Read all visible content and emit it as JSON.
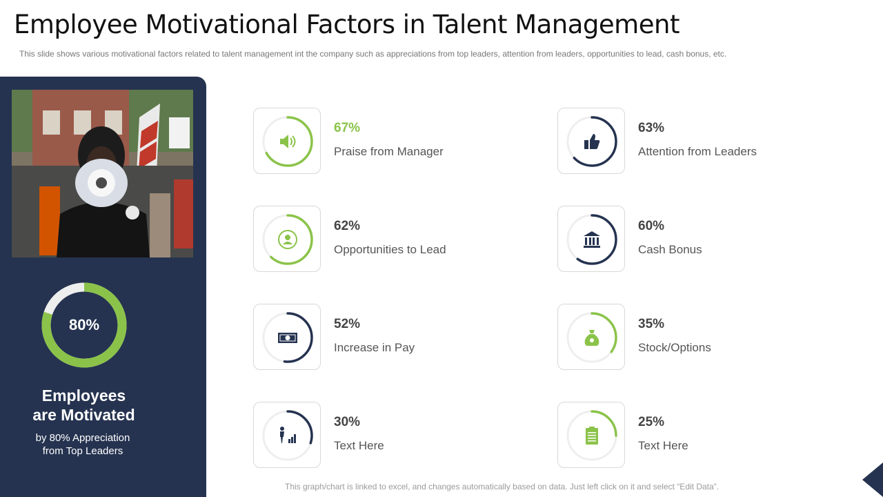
{
  "title": "Employee Motivational Factors in Talent Management",
  "subtitle": "This slide shows various  motivational factors related to talent management  int the company  such as appreciations  from  top leaders,  attention  from  leaders,  opportunities  to lead,  cash bonus,  etc.",
  "sidebar": {
    "ring_value": "80%",
    "ring_percent": 80,
    "heading_line1": "Employees",
    "heading_line2": "are Motivated",
    "text_line1": "by 80% Appreciation",
    "text_line2": "from Top Leaders"
  },
  "factors": [
    {
      "value": "67%",
      "percent": 67,
      "label": "Praise from Manager",
      "icon": "megaphone-icon",
      "color": "#8bc34a"
    },
    {
      "value": "63%",
      "percent": 63,
      "label": "Attention from Leaders",
      "icon": "thumbs-up-icon",
      "color": "#253350"
    },
    {
      "value": "62%",
      "percent": 62,
      "label": "Opportunities to Lead",
      "icon": "leader-icon",
      "color": "#8bc34a"
    },
    {
      "value": "60%",
      "percent": 60,
      "label": "Cash Bonus",
      "icon": "bank-icon",
      "color": "#253350"
    },
    {
      "value": "52%",
      "percent": 52,
      "label": "Increase  in Pay",
      "icon": "banknote-icon",
      "color": "#253350"
    },
    {
      "value": "35%",
      "percent": 35,
      "label": "Stock/Options",
      "icon": "money-bag-icon",
      "color": "#8bc34a"
    },
    {
      "value": "30%",
      "percent": 30,
      "label": "Text Here",
      "icon": "growth-chart-icon",
      "color": "#253350"
    },
    {
      "value": "25%",
      "percent": 25,
      "label": "Text Here",
      "icon": "clipboard-icon",
      "color": "#8bc34a"
    }
  ],
  "footer": "This graph/chart is linked to excel, and changes automatically based on data. Just left click on it and select “Edit Data”.",
  "colors": {
    "navy": "#253350",
    "green": "#8bc34a",
    "track": "#eeeeee"
  }
}
